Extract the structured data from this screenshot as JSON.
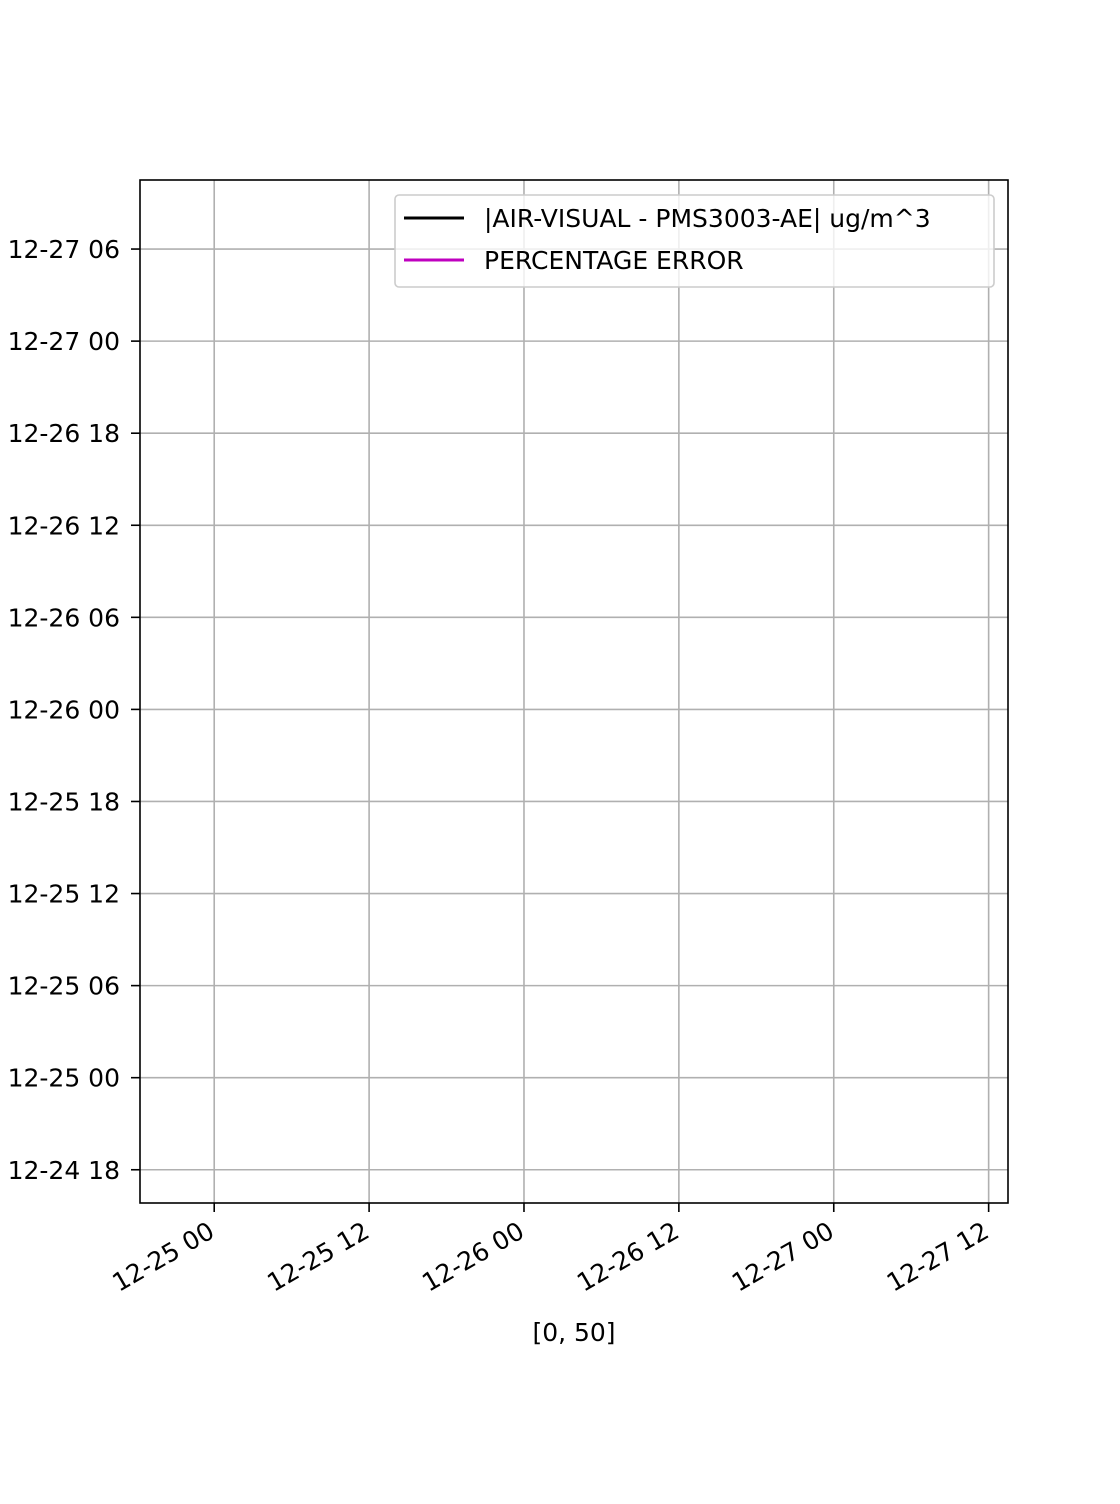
{
  "chart_data": {
    "type": "line",
    "title": "",
    "xlabel": "[0, 50]",
    "ylabel": "",
    "x_axis": {
      "kind": "datetime",
      "tick_labels": [
        "12-25 00",
        "12-25 12",
        "12-26 00",
        "12-26 12",
        "12-27 00",
        "12-27 12"
      ],
      "ticks": [
        "2017-12-25T00:00",
        "2017-12-25T12:00",
        "2017-12-26T00:00",
        "2017-12-26T12:00",
        "2017-12-27T00:00",
        "2017-12-27T12:00"
      ],
      "range": [
        "2017-12-24T18:15",
        "2017-12-27T13:30"
      ]
    },
    "y_axis": {
      "kind": "datetime",
      "tick_labels": [
        "12-24 18",
        "12-25 00",
        "12-25 06",
        "12-25 12",
        "12-25 18",
        "12-26 00",
        "12-26 06",
        "12-26 12",
        "12-26 18",
        "12-27 00",
        "12-27 06"
      ],
      "ticks": [
        "2017-12-24T18:00",
        "2017-12-25T00:00",
        "2017-12-25T06:00",
        "2017-12-25T12:00",
        "2017-12-25T18:00",
        "2017-12-26T00:00",
        "2017-12-26T06:00",
        "2017-12-26T12:00",
        "2017-12-26T18:00",
        "2017-12-27T00:00",
        "2017-12-27T06:00"
      ],
      "range": [
        "2017-12-24T15:50",
        "2017-12-27T10:30"
      ]
    },
    "grid": true,
    "legend_position": "top-right",
    "series": [
      {
        "name": "|AIR-VISUAL - PMS3003-AE| ug/m^3",
        "color": "#000000",
        "values": []
      },
      {
        "name": "PERCENTAGE ERROR",
        "color": "#bf00bf",
        "values": []
      }
    ]
  }
}
